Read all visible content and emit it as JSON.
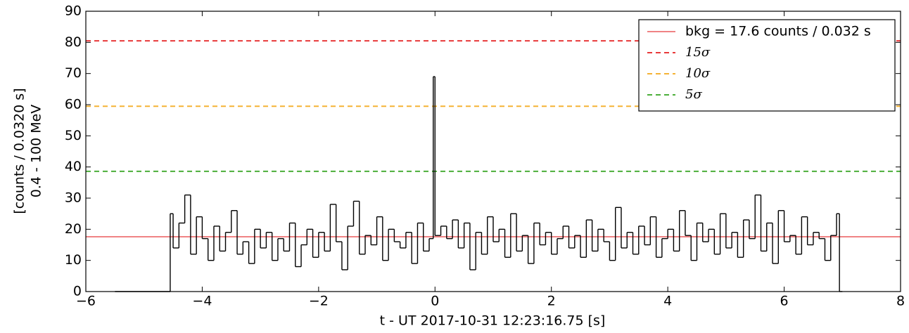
{
  "chart_data": {
    "type": "step",
    "xlabel": "t - UT 2017-10-31 12:23:16.75 [s]",
    "ylabel": [
      "[counts / 0.0320 s]",
      "0.4 - 100 MeV"
    ],
    "xlim": [
      -6,
      8
    ],
    "xticks": [
      {
        "value": -6,
        "label": "−6"
      },
      {
        "value": -4,
        "label": "−4"
      },
      {
        "value": -2,
        "label": "−2"
      },
      0,
      2,
      4,
      6,
      8
    ],
    "ylim": [
      0,
      90
    ],
    "yticks": [
      0,
      10,
      20,
      30,
      40,
      50,
      60,
      70,
      80,
      90
    ],
    "legend": "upper right",
    "series": [
      {
        "color": "#000000",
        "x": [
          -5.5,
          -4.55,
          -4.5,
          -4.4,
          -4.3,
          -4.2,
          -4.1,
          -4.0,
          -3.9,
          -3.8,
          -3.7,
          -3.6,
          -3.5,
          -3.4,
          -3.3,
          -3.2,
          -3.1,
          -3.0,
          -2.9,
          -2.8,
          -2.7,
          -2.6,
          -2.5,
          -2.4,
          -2.3,
          -2.2,
          -2.1,
          -2.0,
          -1.9,
          -1.8,
          -1.7,
          -1.6,
          -1.5,
          -1.4,
          -1.3,
          -1.2,
          -1.1,
          -1.0,
          -0.9,
          -0.8,
          -0.7,
          -0.6,
          -0.5,
          -0.4,
          -0.3,
          -0.2,
          -0.1,
          -0.03,
          0.0,
          0.1,
          0.2,
          0.3,
          0.4,
          0.5,
          0.6,
          0.7,
          0.8,
          0.9,
          1.0,
          1.1,
          1.2,
          1.3,
          1.4,
          1.5,
          1.6,
          1.7,
          1.8,
          1.9,
          2.0,
          2.1,
          2.2,
          2.3,
          2.4,
          2.5,
          2.6,
          2.7,
          2.8,
          2.9,
          3.0,
          3.1,
          3.2,
          3.3,
          3.4,
          3.5,
          3.6,
          3.7,
          3.8,
          3.9,
          4.0,
          4.1,
          4.2,
          4.3,
          4.4,
          4.5,
          4.6,
          4.7,
          4.8,
          4.9,
          5.0,
          5.1,
          5.2,
          5.3,
          5.4,
          5.5,
          5.6,
          5.7,
          5.8,
          5.9,
          6.0,
          6.1,
          6.2,
          6.3,
          6.4,
          6.5,
          6.6,
          6.7,
          6.8,
          6.9,
          6.95,
          7.0
        ],
        "values": [
          0,
          25,
          14,
          22,
          31,
          12,
          24,
          17,
          10,
          21,
          13,
          19,
          26,
          12,
          16,
          9,
          20,
          14,
          19,
          10,
          17,
          13,
          22,
          8,
          15,
          20,
          11,
          19,
          13,
          28,
          16,
          7,
          21,
          29,
          12,
          18,
          15,
          24,
          10,
          20,
          16,
          14,
          19,
          9,
          22,
          13,
          17,
          69,
          18,
          21,
          17,
          23,
          14,
          22,
          7,
          19,
          12,
          24,
          16,
          20,
          11,
          25,
          13,
          18,
          9,
          22,
          15,
          19,
          12,
          17,
          21,
          14,
          18,
          11,
          23,
          13,
          20,
          16,
          10,
          27,
          14,
          19,
          12,
          21,
          15,
          24,
          11,
          17,
          20,
          13,
          26,
          18,
          10,
          22,
          16,
          20,
          12,
          25,
          14,
          19,
          11,
          23,
          17,
          31,
          13,
          22,
          9,
          26,
          16,
          18,
          12,
          24,
          15,
          19,
          17,
          10,
          18,
          25,
          0,
          0
        ]
      }
    ],
    "hlines": [
      {
        "name": "bkg = 17.6 counts / 0.032 s",
        "value": 17.6,
        "color": "#e8393a",
        "style": "solid"
      },
      {
        "name": "15σ",
        "value": 80.5,
        "color": "#e8393a",
        "style": "dashed"
      },
      {
        "name": "10σ",
        "value": 59.5,
        "color": "#f5b335",
        "style": "dashed"
      },
      {
        "name": "5σ",
        "value": 38.6,
        "color": "#4caf3a",
        "style": "dashed"
      }
    ]
  }
}
